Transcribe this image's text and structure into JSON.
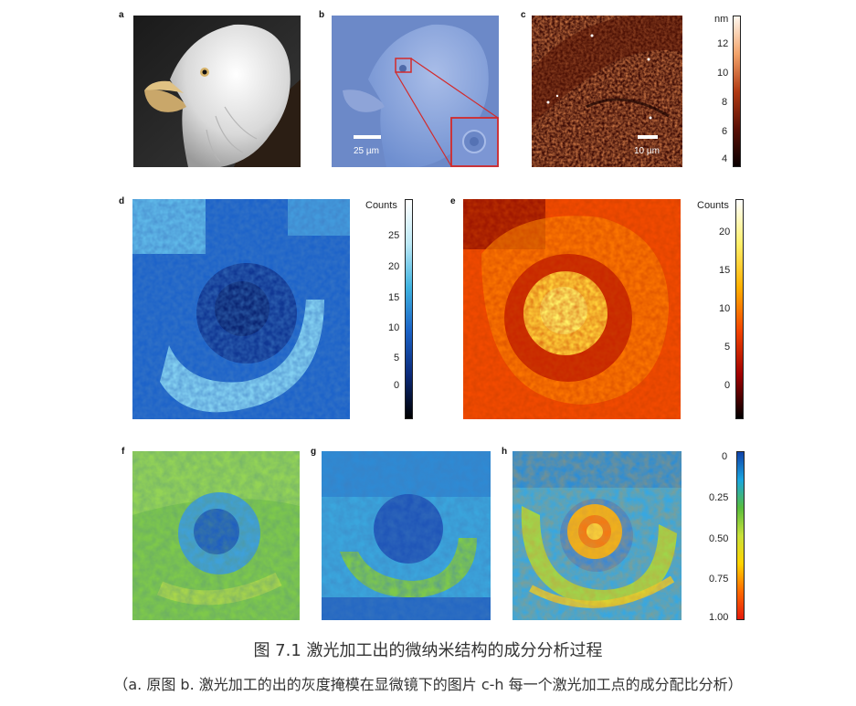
{
  "panels": {
    "a": {
      "label": "a"
    },
    "b": {
      "label": "b",
      "scalebar": "25 µm"
    },
    "c": {
      "label": "c",
      "scalebar": "10 µm"
    },
    "d": {
      "label": "d"
    },
    "e": {
      "label": "e"
    },
    "f": {
      "label": "f"
    },
    "g": {
      "label": "g"
    },
    "h": {
      "label": "h"
    }
  },
  "colorbars": {
    "nm": {
      "title": "nm",
      "ticks": [
        "12",
        "10",
        "8",
        "6",
        "4"
      ],
      "colors": [
        "#fff8ef",
        "#f3a36a",
        "#b13a12",
        "#5a0f05",
        "#0a0000"
      ]
    },
    "counts_blue": {
      "title": "Counts",
      "ticks": [
        "25",
        "20",
        "15",
        "10",
        "5",
        "0"
      ],
      "colors": [
        "#ffffff",
        "#bde9f6",
        "#3fb3e0",
        "#1a62c6",
        "#0b2a7a",
        "#000000"
      ]
    },
    "counts_hot": {
      "title": "Counts",
      "ticks": [
        "20",
        "15",
        "10",
        "5",
        "0"
      ],
      "colors": [
        "#ffffff",
        "#fff06a",
        "#ffb000",
        "#f24300",
        "#a00000",
        "#000000"
      ]
    },
    "ratio": {
      "title": "",
      "ticks": [
        "0",
        "0.25",
        "0.50",
        "0.75",
        "1.00"
      ],
      "colors": [
        "#1042a8",
        "#1aa6e0",
        "#58bd3d",
        "#c8e03a",
        "#ffd400",
        "#ff6a00",
        "#e41a0c"
      ]
    }
  },
  "caption": {
    "title": "图 7.1 激光加工出的微纳米结构的成分分析过程",
    "subtitle": "（a. 原图 b. 激光加工的出的灰度掩模在显微镜下的图片 c-h 每一个激光加工点的成分配比分析）"
  }
}
